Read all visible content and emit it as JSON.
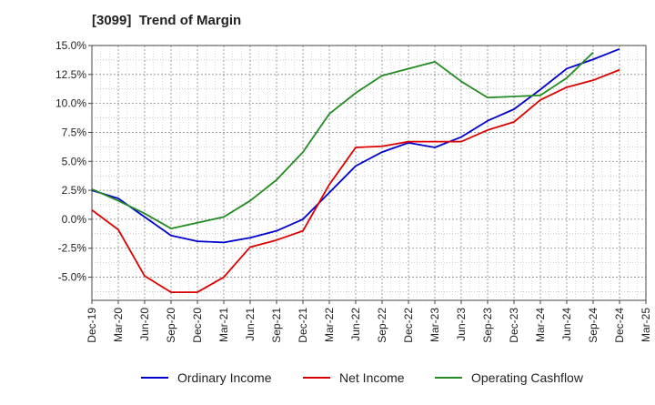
{
  "chart_data": {
    "type": "line",
    "title": "[3099]  Trend of Margin",
    "x": [
      "Dec-19",
      "Mar-20",
      "Jun-20",
      "Sep-20",
      "Dec-20",
      "Mar-21",
      "Jun-21",
      "Sep-21",
      "Dec-21",
      "Mar-22",
      "Jun-22",
      "Sep-22",
      "Dec-22",
      "Mar-23",
      "Jun-23",
      "Sep-23",
      "Dec-23",
      "Mar-24",
      "Jun-24",
      "Sep-24",
      "Dec-24",
      "Mar-25"
    ],
    "ylim": [
      -7.0,
      15.0
    ],
    "yticks": [
      "15.0%",
      "12.5%",
      "10.0%",
      "7.5%",
      "5.0%",
      "2.5%",
      "0.0%",
      "-2.5%",
      "-5.0%"
    ],
    "ytick_values": [
      15.0,
      12.5,
      10.0,
      7.5,
      5.0,
      2.5,
      0.0,
      -2.5,
      -5.0
    ],
    "grid": true,
    "legend_placement": "bottom",
    "series": [
      {
        "name": "Ordinary Income",
        "color": "#0000cc",
        "values": [
          2.5,
          1.8,
          0.2,
          -1.4,
          -1.9,
          -2.0,
          -1.6,
          -1.0,
          0.0,
          2.3,
          4.6,
          5.8,
          6.6,
          6.2,
          7.1,
          8.5,
          9.5,
          11.2,
          13.0,
          13.8,
          14.7,
          null
        ]
      },
      {
        "name": "Net Income",
        "color": "#dd0000",
        "values": [
          0.8,
          -0.9,
          -4.9,
          -6.3,
          -6.3,
          -5.0,
          -2.4,
          -1.8,
          -1.0,
          3.0,
          6.2,
          6.3,
          6.7,
          6.7,
          6.7,
          7.7,
          8.4,
          10.3,
          11.4,
          12.0,
          12.9,
          null
        ]
      },
      {
        "name": "Operating Cashflow",
        "color": "#228b22",
        "values": [
          2.6,
          1.6,
          0.5,
          -0.8,
          -0.3,
          0.2,
          1.6,
          3.4,
          5.8,
          9.1,
          10.9,
          12.4,
          13.0,
          13.6,
          11.9,
          10.5,
          10.6,
          10.7,
          12.2,
          14.4,
          null,
          null
        ]
      }
    ]
  }
}
